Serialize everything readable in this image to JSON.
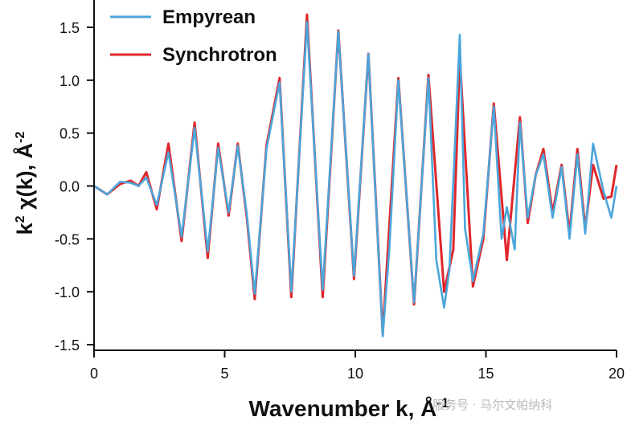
{
  "chart_data": {
    "type": "line",
    "xlabel": "Wavenumber k, Å",
    "xlabel_sup": "-1",
    "ylabel_parts": {
      "k": "k",
      "k_sup": "2",
      "chi": " χ(k), Å",
      "unit_sup": "-2"
    },
    "xlim": [
      0,
      20
    ],
    "ylim": [
      -1.55,
      1.65
    ],
    "x_ticks": [
      0,
      5,
      10,
      15,
      20
    ],
    "x_tick_labels": [
      "0",
      "5",
      "10",
      "15",
      "20"
    ],
    "y_ticks": [
      -1.5,
      -1.0,
      -0.5,
      0.0,
      0.5,
      1.0,
      1.5
    ],
    "y_tick_labels": [
      "-1.5",
      "-1.0",
      "-0.5",
      "0.0",
      "0.5",
      "1.0",
      "1.5"
    ],
    "legend_position": "top-left",
    "grid": false,
    "series": [
      {
        "name": "Synchrotron",
        "color": "#e0262b",
        "x": [
          0.0,
          0.5,
          1.0,
          1.4,
          1.7,
          2.0,
          2.4,
          2.85,
          3.35,
          3.85,
          4.35,
          4.75,
          5.15,
          5.5,
          5.85,
          6.15,
          6.6,
          7.1,
          7.55,
          8.15,
          8.75,
          9.35,
          9.95,
          10.5,
          11.05,
          11.65,
          12.25,
          12.8,
          13.4,
          13.75,
          14.0,
          14.5,
          14.9,
          15.3,
          15.8,
          16.3,
          16.6,
          16.9,
          17.2,
          17.55,
          17.9,
          18.2,
          18.5,
          18.8,
          19.1,
          19.5,
          19.8,
          20.0
        ],
        "y": [
          0.0,
          -0.08,
          0.02,
          0.05,
          0.0,
          0.13,
          -0.22,
          0.4,
          -0.52,
          0.6,
          -0.68,
          0.4,
          -0.28,
          0.4,
          -0.3,
          -1.07,
          0.38,
          1.02,
          -1.05,
          1.62,
          -1.05,
          1.47,
          -0.88,
          1.25,
          -1.4,
          1.02,
          -1.12,
          1.05,
          -1.0,
          -0.6,
          1.22,
          -0.95,
          -0.5,
          0.78,
          -0.7,
          0.65,
          -0.35,
          0.1,
          0.35,
          -0.25,
          0.2,
          -0.45,
          0.35,
          -0.4,
          0.2,
          -0.12,
          -0.1,
          0.2
        ]
      },
      {
        "name": "Empyrean",
        "color": "#4ba6da",
        "x": [
          0.0,
          0.5,
          1.0,
          1.4,
          1.7,
          2.0,
          2.4,
          2.85,
          3.35,
          3.85,
          4.35,
          4.75,
          5.15,
          5.5,
          5.85,
          6.15,
          6.6,
          7.1,
          7.55,
          8.15,
          8.75,
          9.35,
          9.95,
          10.5,
          11.05,
          11.3,
          11.65,
          12.25,
          12.8,
          13.1,
          13.4,
          13.6,
          14.0,
          14.2,
          14.5,
          14.9,
          15.3,
          15.6,
          15.8,
          16.1,
          16.3,
          16.6,
          16.9,
          17.2,
          17.55,
          17.9,
          18.2,
          18.5,
          18.8,
          19.1,
          19.5,
          19.8,
          20.0
        ],
        "y": [
          0.0,
          -0.08,
          0.04,
          0.03,
          0.0,
          0.08,
          -0.18,
          0.32,
          -0.48,
          0.55,
          -0.62,
          0.36,
          -0.25,
          0.38,
          -0.27,
          -1.02,
          0.35,
          0.98,
          -1.0,
          1.55,
          -0.98,
          1.46,
          -0.85,
          1.25,
          -1.42,
          -0.6,
          1.0,
          -1.1,
          1.02,
          -0.7,
          -1.15,
          -0.8,
          1.43,
          -0.4,
          -0.9,
          -0.45,
          0.75,
          -0.5,
          -0.2,
          -0.6,
          0.6,
          -0.3,
          0.1,
          0.3,
          -0.3,
          0.18,
          -0.5,
          0.3,
          -0.45,
          0.4,
          -0.05,
          -0.3,
          0.0
        ]
      }
    ]
  },
  "watermark": "服务号 · 马尔文帕纳科"
}
